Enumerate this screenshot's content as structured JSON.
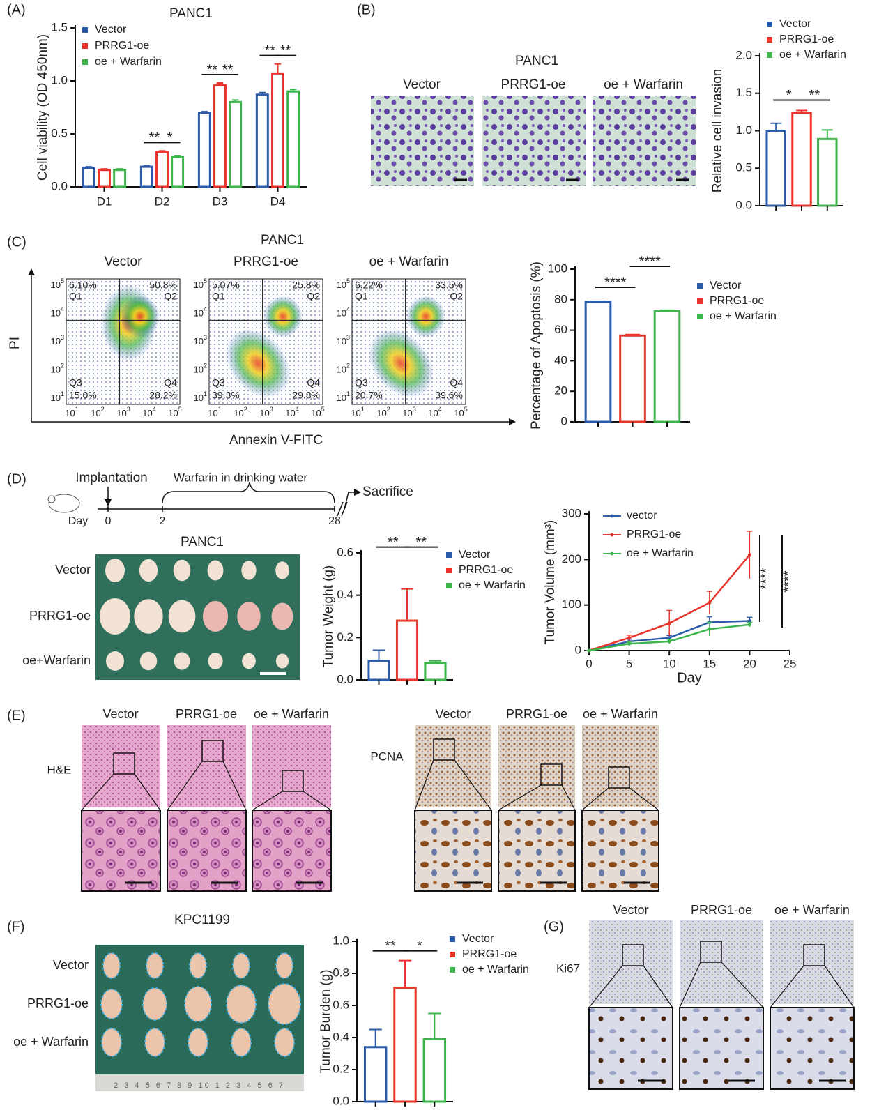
{
  "panel_labels": [
    "(A)",
    "(B)",
    "(C)",
    "(D)",
    "(E)",
    "(F)",
    "(G)"
  ],
  "chart_data": [
    {
      "type": "bar",
      "title": "PANC1",
      "ylabel": "Cell viability (OD 450nm)",
      "categories": [
        "D1",
        "D2",
        "D3",
        "D4"
      ],
      "series": [
        {
          "name": "Vector",
          "color": "#2b5cab",
          "values": [
            0.18,
            0.19,
            0.7,
            0.87
          ],
          "errors": [
            0.01,
            0.01,
            0.01,
            0.02
          ]
        },
        {
          "name": "PRRG1-oe",
          "color": "#e8352b",
          "values": [
            0.16,
            0.33,
            0.96,
            1.07
          ],
          "errors": [
            0.01,
            0.01,
            0.02,
            0.09
          ]
        },
        {
          "name": "oe + Warfarin",
          "color": "#3cb54b",
          "values": [
            0.16,
            0.28,
            0.8,
            0.9
          ],
          "errors": [
            0.01,
            0.01,
            0.02,
            0.02
          ]
        }
      ],
      "ylim": [
        0,
        1.5
      ],
      "yticks": [
        {
          "value": 0,
          "label": "0.0"
        },
        0.5,
        {
          "value": 1,
          "label": "1.0"
        },
        1.5
      ],
      "annotations": [
        "**",
        "*",
        "**",
        "**",
        "**",
        "**"
      ]
    },
    {
      "type": "bar",
      "ylabel": "Relative cell invasion",
      "categories": [
        null
      ],
      "series": [
        {
          "name": "Vector",
          "color": "#2b5cab",
          "values": [
            1.0
          ],
          "errors": [
            0.1
          ]
        },
        {
          "name": "PRRG1-oe",
          "color": "#e8352b",
          "values": [
            1.24
          ],
          "errors": [
            0.03
          ]
        },
        {
          "name": "oe + Warfarin",
          "color": "#3cb54b",
          "values": [
            0.89
          ],
          "errors": [
            0.12
          ]
        }
      ],
      "ylim": [
        0,
        2
      ],
      "yticks": [
        {
          "value": 0,
          "label": "0.0"
        },
        0.5,
        {
          "value": 1,
          "label": "1.0"
        },
        1.5,
        {
          "value": 2,
          "label": "2.0"
        }
      ],
      "annotations": [
        "*",
        "**"
      ]
    },
    {
      "type": "bar",
      "ylabel": "Percentage of Apoptosis (%)",
      "categories": [
        null
      ],
      "series": [
        {
          "name": "Vector",
          "color": "#2b5cab",
          "values": [
            78.5
          ],
          "errors": [
            0.5
          ]
        },
        {
          "name": "PRRG1-oe",
          "color": "#e8352b",
          "values": [
            56.5
          ],
          "errors": [
            0.7
          ]
        },
        {
          "name": "oe + Warfarin",
          "color": "#3cb54b",
          "values": [
            72.5
          ],
          "errors": [
            0.6
          ]
        }
      ],
      "ylim": [
        0,
        100
      ],
      "yticks": [
        0,
        20,
        40,
        60,
        80,
        100
      ],
      "annotations": [
        "****",
        "****"
      ]
    },
    {
      "type": "bar",
      "ylabel": "Tumor Weight (g)",
      "categories": [
        null
      ],
      "series": [
        {
          "name": "Vector",
          "color": "#2b5cab",
          "values": [
            0.09
          ],
          "errors": [
            0.05
          ]
        },
        {
          "name": "PRRG1-oe",
          "color": "#e8352b",
          "values": [
            0.28
          ],
          "errors": [
            0.15
          ]
        },
        {
          "name": "oe + Warfarin",
          "color": "#3cb54b",
          "values": [
            0.08
          ],
          "errors": [
            0.01
          ]
        }
      ],
      "ylim": [
        0,
        0.6
      ],
      "yticks": [
        {
          "value": 0,
          "label": "0.0"
        },
        0.2,
        0.4,
        0.6
      ],
      "annotations": [
        "**",
        "**"
      ]
    },
    {
      "type": "line",
      "ylabel": "Tumor Volume (mm³)",
      "xlabel": "Day",
      "x": [
        0,
        5,
        10,
        15,
        20
      ],
      "series": [
        {
          "name": "vector",
          "color": "#2b5cab",
          "values": [
            0,
            20,
            28,
            62,
            65
          ],
          "errors": [
            0,
            5,
            5,
            12,
            8
          ]
        },
        {
          "name": "PRRG1-oe",
          "color": "#e8352b",
          "values": [
            0,
            28,
            60,
            105,
            210
          ],
          "errors": [
            0,
            6,
            28,
            25,
            52
          ]
        },
        {
          "name": "oe + Warfarin",
          "color": "#3cb54b",
          "values": [
            0,
            15,
            20,
            47,
            57
          ],
          "errors": [
            0,
            4,
            5,
            15,
            5
          ]
        }
      ],
      "xlim": [
        0,
        25
      ],
      "xticks": [
        0,
        5,
        10,
        15,
        20,
        25
      ],
      "ylim": [
        0,
        300
      ],
      "yticks": [
        0,
        100,
        200,
        300
      ],
      "annotations": [
        "****",
        "****"
      ]
    },
    {
      "type": "bar",
      "ylabel": "Tumor Burden (g)",
      "categories": [
        null
      ],
      "series": [
        {
          "name": "Vector",
          "color": "#2b5cab",
          "values": [
            0.34
          ],
          "errors": [
            0.11
          ]
        },
        {
          "name": "PRRG1-oe",
          "color": "#e8352b",
          "values": [
            0.71
          ],
          "errors": [
            0.17
          ]
        },
        {
          "name": "oe + Warfarin",
          "color": "#3cb54b",
          "values": [
            0.39
          ],
          "errors": [
            0.16
          ]
        }
      ],
      "ylim": [
        0,
        1
      ],
      "yticks": [
        {
          "value": 0,
          "label": "0.0"
        },
        0.2,
        0.4,
        0.6,
        0.8,
        {
          "value": 1,
          "label": "1.0"
        }
      ],
      "annotations": [
        "**",
        "*"
      ]
    }
  ],
  "panel_b": {
    "title": "PANC1",
    "columns": [
      "Vector",
      "PRRG1-oe",
      "oe + Warfarin"
    ]
  },
  "panel_c": {
    "title": "PANC1",
    "columns": [
      "Vector",
      "PRRG1-oe",
      "oe + Warfarin"
    ],
    "quadrant_names": [
      "Q1",
      "Q2",
      "Q3",
      "Q4"
    ],
    "quadrant_values": [
      [
        "6.10%",
        "50.8%",
        "15.0%",
        "28.2%"
      ],
      [
        "5.07%",
        "25.8%",
        "39.3%",
        "29.8%"
      ],
      [
        "6.22%",
        "33.5%",
        "20.7%",
        "39.6%"
      ]
    ],
    "tick_base": "10",
    "tick_exponents": [
      "1",
      "2",
      "3",
      "4",
      "5"
    ],
    "xlabel": "Annexin V-FITC",
    "ylabel": "PI"
  },
  "panel_d": {
    "timeline": {
      "start": "Implantation",
      "treatment": "Warfarin in drinking water",
      "end": "Sacrifice",
      "axis": "Day",
      "days": [
        "0",
        "2",
        "28"
      ]
    },
    "photo": {
      "title": "PANC1",
      "rows": [
        "Vector",
        "PRRG1-oe",
        "oe+Warfarin"
      ]
    }
  },
  "panel_e": {
    "columns": [
      "Vector",
      "PRRG1-oe",
      "oe + Warfarin"
    ],
    "stains": [
      "H&E",
      "PCNA"
    ]
  },
  "panel_f": {
    "title": "KPC1199",
    "rows": [
      "Vector",
      "PRRG1-oe",
      "oe + Warfarin"
    ],
    "ruler": "2 3 4 5 6 7 8 9 10 1 2 3 4 5 6 7"
  },
  "panel_g": {
    "columns": [
      "Vector",
      "PRRG1-oe",
      "oe + Warfarin"
    ],
    "stain": "Ki67"
  }
}
